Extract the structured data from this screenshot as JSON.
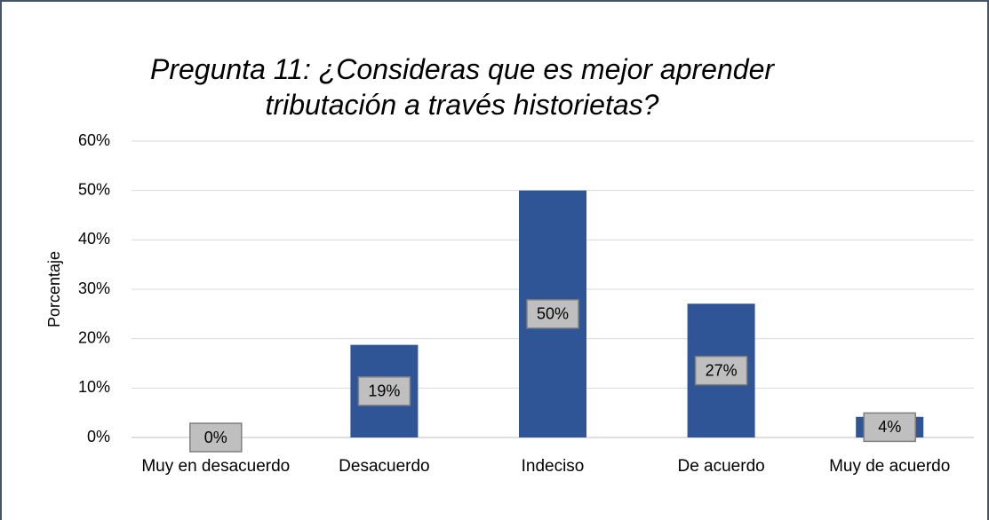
{
  "chart_data": {
    "type": "bar",
    "title": "Pregunta 11: ¿Consideras que es mejor aprender tributación a través historietas?",
    "ylabel": "Porcentaje",
    "categories": [
      "Muy en desacuerdo",
      "Desacuerdo",
      "Indeciso",
      "De acuerdo",
      "Muy de acuerdo"
    ],
    "values": [
      0,
      18.75,
      50,
      27.08,
      4.17
    ],
    "value_labels": [
      "0%",
      "19%",
      "50%",
      "27%",
      "4%"
    ],
    "color": "#2f5597",
    "ylim": [
      0,
      60
    ],
    "yticks": [
      {
        "value": 0,
        "label": "0%"
      },
      {
        "value": 10,
        "label": "10%"
      },
      {
        "value": 20,
        "label": "20%"
      },
      {
        "value": 30,
        "label": "30%"
      },
      {
        "value": 40,
        "label": "40%"
      },
      {
        "value": 50,
        "label": "50%"
      },
      {
        "value": 60,
        "label": "60%"
      }
    ],
    "grid": true
  }
}
